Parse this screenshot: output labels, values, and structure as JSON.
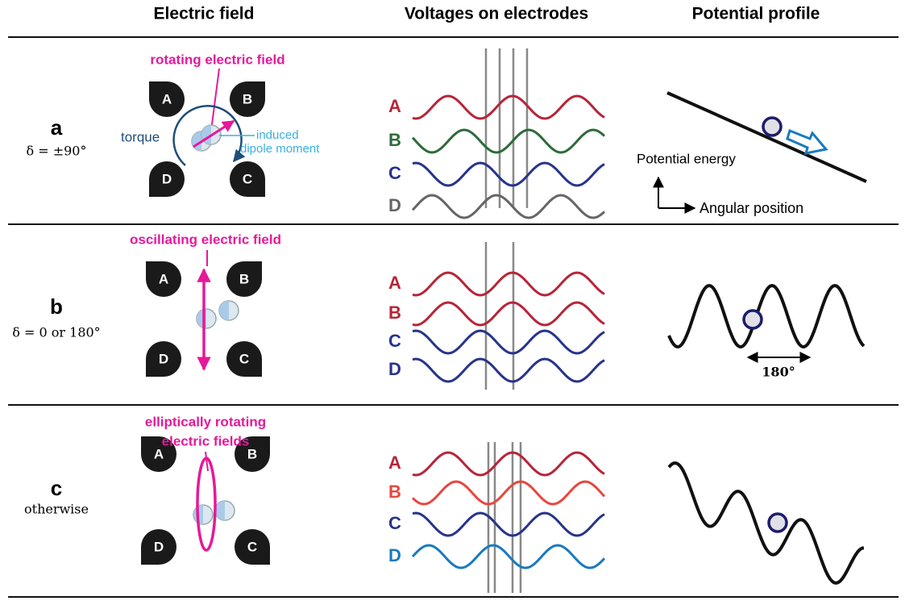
{
  "headers": [
    "Electric field",
    "Voltages on electrodes",
    "Potential profile"
  ],
  "rows": [
    {
      "label": "a",
      "condition": "δ = ±90°",
      "field_label": [
        "rotating electric field"
      ],
      "annotations": [
        "torque",
        "induced",
        "dipole moment"
      ],
      "electrodes": [
        "A",
        "B",
        "D",
        "C"
      ],
      "waves": [
        "A",
        "B",
        "C",
        "D"
      ],
      "axis_labels": [
        "Potential energy",
        "Angular position"
      ]
    },
    {
      "label": "b",
      "condition": "δ = 0 or 180°",
      "field_label": [
        "oscillating electric field"
      ],
      "electrodes": [
        "A",
        "B",
        "D",
        "C"
      ],
      "waves": [
        "A",
        "B",
        "C",
        "D"
      ],
      "spacing_label": "180°"
    },
    {
      "label": "c",
      "condition": "otherwise",
      "field_label": [
        "elliptically rotating",
        "electric fields"
      ],
      "electrodes": [
        "A",
        "B",
        "D",
        "C"
      ],
      "waves": [
        "A",
        "B",
        "C",
        "D"
      ]
    }
  ]
}
